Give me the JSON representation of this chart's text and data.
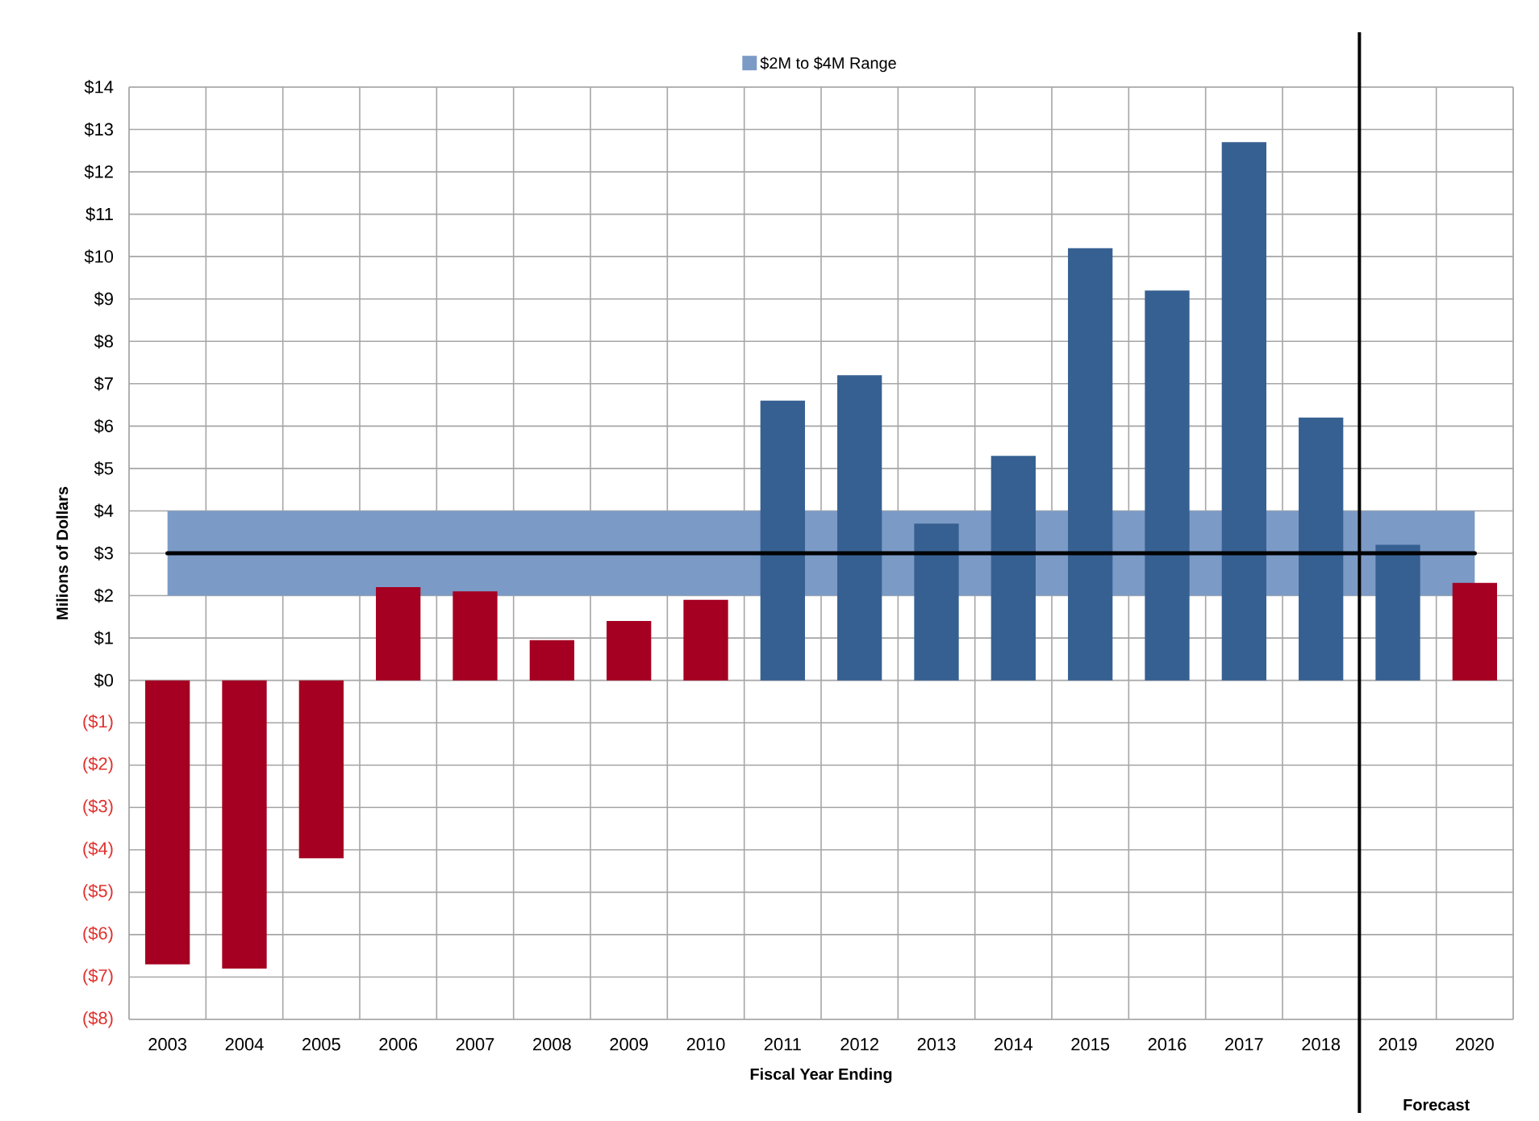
{
  "chart_data": {
    "type": "bar",
    "xlabel": "Fiscal Year Ending",
    "ylabel": "Milions of Dollars",
    "categories": [
      "2003",
      "2004",
      "2005",
      "2006",
      "2007",
      "2008",
      "2009",
      "2010",
      "2011",
      "2012",
      "2013",
      "2014",
      "2015",
      "2016",
      "2017",
      "2018",
      "2019",
      "2020"
    ],
    "values": [
      -6.7,
      -6.8,
      -4.2,
      2.2,
      2.1,
      0.95,
      1.4,
      1.9,
      6.6,
      7.2,
      3.7,
      5.3,
      10.2,
      9.2,
      12.7,
      6.2,
      3.2,
      2.3
    ],
    "colors": [
      "#a50021",
      "#a50021",
      "#a50021",
      "#a50021",
      "#a50021",
      "#a50021",
      "#a50021",
      "#a50021",
      "#376092",
      "#376092",
      "#376092",
      "#376092",
      "#376092",
      "#376092",
      "#376092",
      "#376092",
      "#376092",
      "#a50021"
    ],
    "ylim": [
      -8,
      14
    ],
    "yticks": [
      {
        "value": -8,
        "label": "($8)"
      },
      {
        "value": -7,
        "label": "($7)"
      },
      {
        "value": -6,
        "label": "($6)"
      },
      {
        "value": -5,
        "label": "($5)"
      },
      {
        "value": -4,
        "label": "($4)"
      },
      {
        "value": -3,
        "label": "($3)"
      },
      {
        "value": -2,
        "label": "($2)"
      },
      {
        "value": -1,
        "label": "($1)"
      },
      {
        "value": 0,
        "label": "$0"
      },
      {
        "value": 1,
        "label": "$1"
      },
      {
        "value": 2,
        "label": "$2"
      },
      {
        "value": 3,
        "label": "$3"
      },
      {
        "value": 4,
        "label": "$4"
      },
      {
        "value": 5,
        "label": "$5"
      },
      {
        "value": 6,
        "label": "$6"
      },
      {
        "value": 7,
        "label": "$7"
      },
      {
        "value": 8,
        "label": "$8"
      },
      {
        "value": 9,
        "label": "$9"
      },
      {
        "value": 10,
        "label": "$10"
      },
      {
        "value": 11,
        "label": "$11"
      },
      {
        "value": 12,
        "label": "$12"
      },
      {
        "value": 13,
        "label": "$13"
      },
      {
        "value": 14,
        "label": "$14"
      }
    ],
    "grid": true,
    "legend": "top",
    "bands": [
      {
        "axis": "y",
        "from": 2,
        "to": 4,
        "label": "$2M to $4M Range",
        "color": "#7b9bc6"
      }
    ],
    "ref_lines": [
      {
        "axis": "y",
        "value": 3,
        "color": "#000000"
      },
      {
        "axis": "x",
        "value": "2019",
        "color": "#000000",
        "label": "Forecast"
      }
    ]
  }
}
